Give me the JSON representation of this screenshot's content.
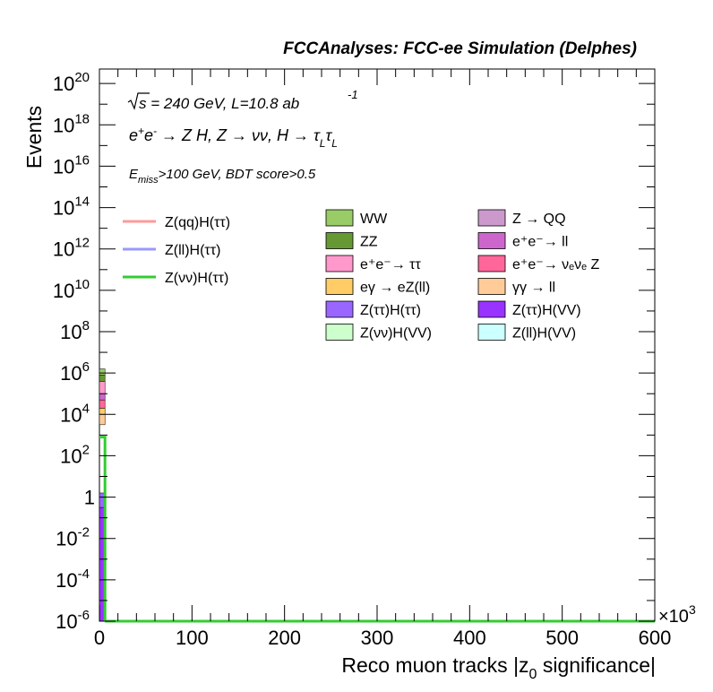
{
  "header": "FCCAnalyses: FCC-ee Simulation (Delphes)",
  "info": {
    "line1_sqrt": "s",
    "line1_rest": " = 240 GeV, L=10.8 ab",
    "line1_exp": "-1",
    "line2_a": "e",
    "line2_sup1": "+",
    "line2_b": "e",
    "line2_sup2": "-",
    "line2_c": " → Z H, Z → νν, H → τ",
    "line2_sub1": "L",
    "line2_d": "τ",
    "line2_sub2": "L",
    "line3_a": "E",
    "line3_sub": "miss",
    "line3_b": ">100 GeV, BDT score>0.5"
  },
  "chart_data": {
    "type": "bar",
    "title": "",
    "xlabel": "Reco muon tracks |z0 significance|",
    "xlabel_parts": {
      "main": "Reco muon tracks |z",
      "sub": "0",
      "rest": " significance|"
    },
    "ylabel": "Events",
    "x_multiplier": "×10",
    "x_multiplier_exp": "3",
    "xlim": [
      0,
      600
    ],
    "ylim_log10": [
      -6,
      20.7
    ],
    "log_y": true,
    "x_ticks": [
      "0",
      "100",
      "200",
      "300",
      "400",
      "500",
      "600"
    ],
    "y_ticks": [
      {
        "exp": -6,
        "base": "10",
        "sup": "-6"
      },
      {
        "exp": -4,
        "base": "10",
        "sup": "-4"
      },
      {
        "exp": -2,
        "base": "10",
        "sup": "-2"
      },
      {
        "exp": 0,
        "base": "1",
        "sup": ""
      },
      {
        "exp": 2,
        "base": "10",
        "sup": "2"
      },
      {
        "exp": 4,
        "base": "10",
        "sup": "4"
      },
      {
        "exp": 6,
        "base": "10",
        "sup": "6"
      },
      {
        "exp": 8,
        "base": "10",
        "sup": "8"
      },
      {
        "exp": 10,
        "base": "10",
        "sup": "10"
      },
      {
        "exp": 12,
        "base": "10",
        "sup": "12"
      },
      {
        "exp": 14,
        "base": "10",
        "sup": "14"
      },
      {
        "exp": 16,
        "base": "10",
        "sup": "16"
      },
      {
        "exp": 18,
        "base": "10",
        "sup": "18"
      },
      {
        "exp": 20,
        "base": "10",
        "sup": "20"
      }
    ],
    "stack_bin": {
      "x_low": 0,
      "x_high": 6
    },
    "stack_segments": [
      {
        "key": "ztautau_hvv",
        "from": -6,
        "to": -0.5,
        "color": "#9933ff"
      },
      {
        "key": "ztautau_htautau",
        "from": -0.5,
        "to": 0.2,
        "color": "#9966ff"
      },
      {
        "key": "gaga_ll",
        "from": 3.5,
        "to": 4.0,
        "color": "#ffcc99"
      },
      {
        "key": "egamma_ezll",
        "from": 4.0,
        "to": 4.3,
        "color": "#ffcc66"
      },
      {
        "key": "ee_nunuz",
        "from": 4.3,
        "to": 4.7,
        "color": "#ff6699"
      },
      {
        "key": "ee_ll",
        "from": 4.7,
        "to": 5.0,
        "color": "#cc66cc"
      },
      {
        "key": "ee_tautau",
        "from": 5.0,
        "to": 5.6,
        "color": "#ff99cc"
      },
      {
        "key": "zz",
        "from": 5.6,
        "to": 5.9,
        "color": "#669933"
      },
      {
        "key": "ww",
        "from": 5.9,
        "to": 6.2,
        "color": "#99cc66"
      }
    ],
    "signal_lines": [
      {
        "name": "Z(νν)H(ττ)",
        "color": "#33cc33",
        "bins": [
          {
            "x_low": 0,
            "x_high": 6,
            "value_log10": 2.9
          }
        ]
      }
    ],
    "legend_lines": [
      {
        "label": "Z(qq)H(ττ)",
        "color": "#ff9999"
      },
      {
        "label": "Z(ll)H(ττ)",
        "color": "#9999ff"
      },
      {
        "label": "Z(νν)H(ττ)",
        "color": "#33cc33"
      }
    ],
    "legend_boxes_col1": [
      {
        "label": "WW",
        "color": "#99cc66"
      },
      {
        "label": "ZZ",
        "color": "#669933"
      },
      {
        "label": "e⁺e⁻→ ττ",
        "color": "#ff99cc"
      },
      {
        "label": "eγ → eZ(ll)",
        "color": "#ffcc66"
      },
      {
        "label": "Z(ττ)H(ττ)",
        "color": "#9966ff"
      },
      {
        "label": "Z(νν)H(VV)",
        "color": "#ccffcc"
      }
    ],
    "legend_boxes_col2": [
      {
        "label": "Z → QQ",
        "color": "#cc99cc"
      },
      {
        "label": "e⁺e⁻→ ll",
        "color": "#cc66cc"
      },
      {
        "label": "e⁺e⁻→ νₑνₑ Z",
        "color": "#ff6699"
      },
      {
        "label": "γγ → ll",
        "color": "#ffcc99"
      },
      {
        "label": "Z(ττ)H(VV)",
        "color": "#9933ff"
      },
      {
        "label": "Z(ll)H(VV)",
        "color": "#ccffff"
      }
    ]
  }
}
